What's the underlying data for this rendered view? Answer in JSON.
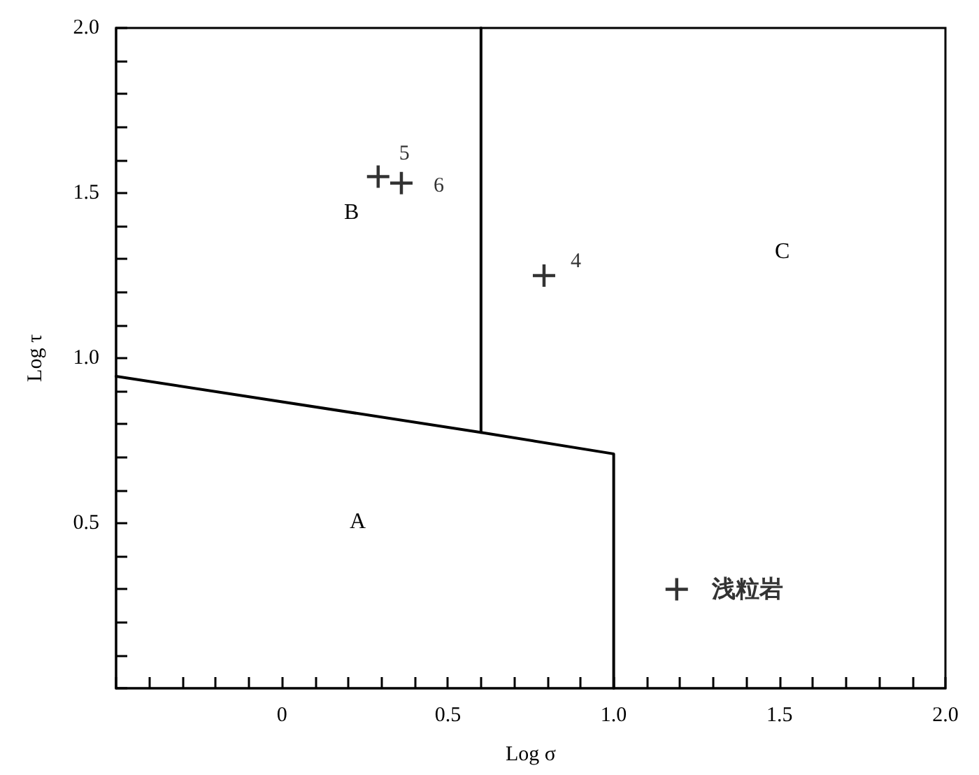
{
  "chart_data": {
    "type": "scatter",
    "xlabel": "Log σ",
    "ylabel": "Log τ",
    "xlim": [
      -0.5,
      2.0
    ],
    "ylim": [
      0,
      2.0
    ],
    "xticks": [
      {
        "value": -0.5,
        "label": null
      },
      {
        "value": -0.4,
        "label": null
      },
      {
        "value": -0.3,
        "label": null
      },
      {
        "value": -0.2,
        "label": null
      },
      {
        "value": -0.1,
        "label": null
      },
      0,
      {
        "value": 0.1,
        "label": null
      },
      {
        "value": 0.2,
        "label": null
      },
      {
        "value": 0.3,
        "label": null
      },
      {
        "value": 0.4,
        "label": null
      },
      0.5,
      {
        "value": 0.6,
        "label": null
      },
      {
        "value": 0.7,
        "label": null
      },
      {
        "value": 0.8,
        "label": null
      },
      {
        "value": 0.9,
        "label": null
      },
      {
        "value": 1.0,
        "label": "1.0"
      },
      {
        "value": 1.1,
        "label": null
      },
      {
        "value": 1.2,
        "label": null
      },
      {
        "value": 1.3,
        "label": null
      },
      {
        "value": 1.4,
        "label": null
      },
      1.5,
      {
        "value": 1.6,
        "label": null
      },
      {
        "value": 1.7,
        "label": null
      },
      {
        "value": 1.8,
        "label": null
      },
      {
        "value": 1.9,
        "label": null
      },
      {
        "value": 2.0,
        "label": "2.0"
      }
    ],
    "yticks": [
      {
        "value": 0,
        "label": null
      },
      {
        "value": 0.1,
        "label": null
      },
      {
        "value": 0.2,
        "label": null
      },
      {
        "value": 0.3,
        "label": null
      },
      {
        "value": 0.4,
        "label": null
      },
      0.5,
      {
        "value": 0.6,
        "label": null
      },
      {
        "value": 0.7,
        "label": null
      },
      {
        "value": 0.8,
        "label": null
      },
      {
        "value": 0.9,
        "label": null
      },
      {
        "value": 1.0,
        "label": "1.0"
      },
      {
        "value": 1.1,
        "label": null
      },
      {
        "value": 1.2,
        "label": null
      },
      {
        "value": 1.3,
        "label": null
      },
      {
        "value": 1.4,
        "label": null
      },
      1.5,
      {
        "value": 1.6,
        "label": null
      },
      {
        "value": 1.7,
        "label": null
      },
      {
        "value": 1.8,
        "label": null
      },
      {
        "value": 1.9,
        "label": null
      },
      {
        "value": 2.0,
        "label": "2.0"
      }
    ],
    "grid": false,
    "series": [
      {
        "name": "5",
        "color": "#000000",
        "marker": "cross",
        "x": [
          0.29
        ],
        "values": [
          1.55
        ]
      },
      {
        "name": "6",
        "color": "#000000",
        "marker": "cross",
        "x": [
          0.36
        ],
        "values": [
          1.53
        ]
      },
      {
        "name": "4",
        "color": "#000000",
        "marker": "cross",
        "x": [
          0.79
        ],
        "values": [
          1.25
        ]
      },
      {
        "name": "浅粒岩",
        "color": "#000000",
        "marker": "cross",
        "x": [
          1.19
        ],
        "values": [
          0.3
        ]
      },
      {
        "type": "line",
        "color": "#000000",
        "marker": "none",
        "line_style": "solid",
        "x": [
          -0.5,
          0.6,
          1.0,
          1.0
        ],
        "values": [
          0.945,
          0.775,
          0.71,
          0
        ]
      },
      {
        "type": "line",
        "color": "#000000",
        "marker": "none",
        "line_style": "solid",
        "x": [
          0.6,
          0.6
        ],
        "values": [
          2.0,
          0.775
        ]
      }
    ],
    "annotations": [
      "A",
      "B",
      "C"
    ]
  }
}
